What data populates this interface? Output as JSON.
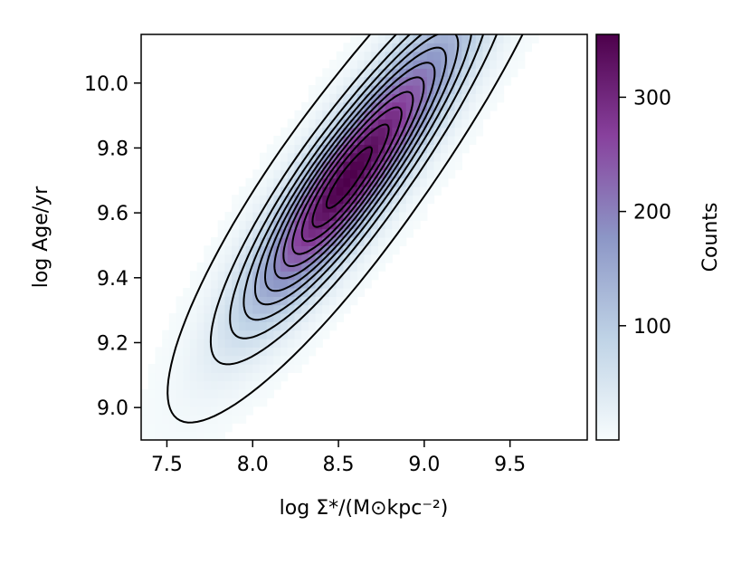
{
  "chart_data": {
    "type": "heatmap",
    "title": "",
    "xlabel": "log Σ*/(M⊙kpc⁻²)",
    "ylabel": "log Age/yr",
    "xlim": [
      7.35,
      9.95
    ],
    "ylim": [
      8.9,
      10.15
    ],
    "x_ticks": [
      "7.5",
      "8.0",
      "8.5",
      "9.0",
      "9.5"
    ],
    "y_ticks": [
      "9.0",
      "9.2",
      "9.4",
      "9.6",
      "9.8",
      "10.0"
    ],
    "colorbar": {
      "label": "Counts",
      "range": [
        0,
        355
      ],
      "ticks": [
        "100",
        "200",
        "300"
      ],
      "colormap": [
        "#f7fcfd",
        "#bfd3e6",
        "#8c96c6",
        "#88419d",
        "#4d004b"
      ]
    },
    "density_peak": {
      "x": 8.55,
      "y": 9.7,
      "counts": 355
    },
    "contour_levels": 12
  }
}
